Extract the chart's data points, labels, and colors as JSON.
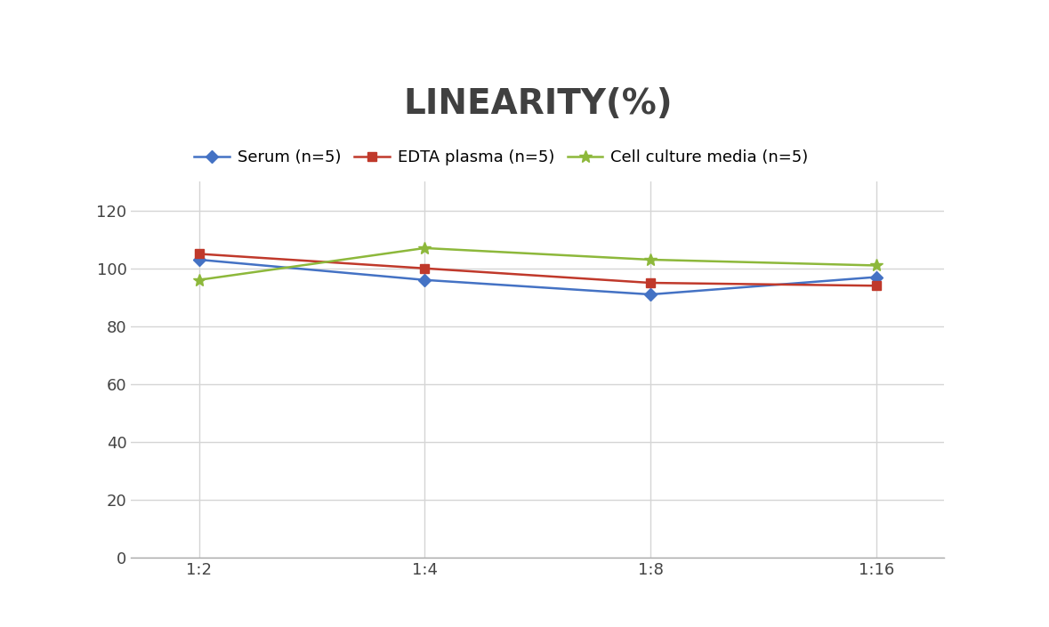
{
  "title": "LINEARITY(%)",
  "x_labels": [
    "1:2",
    "1:4",
    "1:8",
    "1:16"
  ],
  "x_values": [
    0,
    1,
    2,
    3
  ],
  "series": [
    {
      "label": "Serum (n=5)",
      "values": [
        103,
        96,
        91,
        97
      ],
      "color": "#4472C4",
      "marker": "D",
      "marker_size": 7,
      "linewidth": 1.8
    },
    {
      "label": "EDTA plasma (n=5)",
      "values": [
        105,
        100,
        95,
        94
      ],
      "color": "#C0392B",
      "marker": "s",
      "marker_size": 7,
      "linewidth": 1.8
    },
    {
      "label": "Cell culture media (n=5)",
      "values": [
        96,
        107,
        103,
        101
      ],
      "color": "#8DB83B",
      "marker": "*",
      "marker_size": 10,
      "linewidth": 1.8
    }
  ],
  "ylim": [
    0,
    130
  ],
  "yticks": [
    0,
    20,
    40,
    60,
    80,
    100,
    120
  ],
  "background_color": "#ffffff",
  "title_fontsize": 28,
  "title_color": "#404040",
  "legend_fontsize": 13,
  "tick_fontsize": 13,
  "grid_color": "#d5d5d5",
  "xlim": [
    -0.3,
    3.3
  ]
}
